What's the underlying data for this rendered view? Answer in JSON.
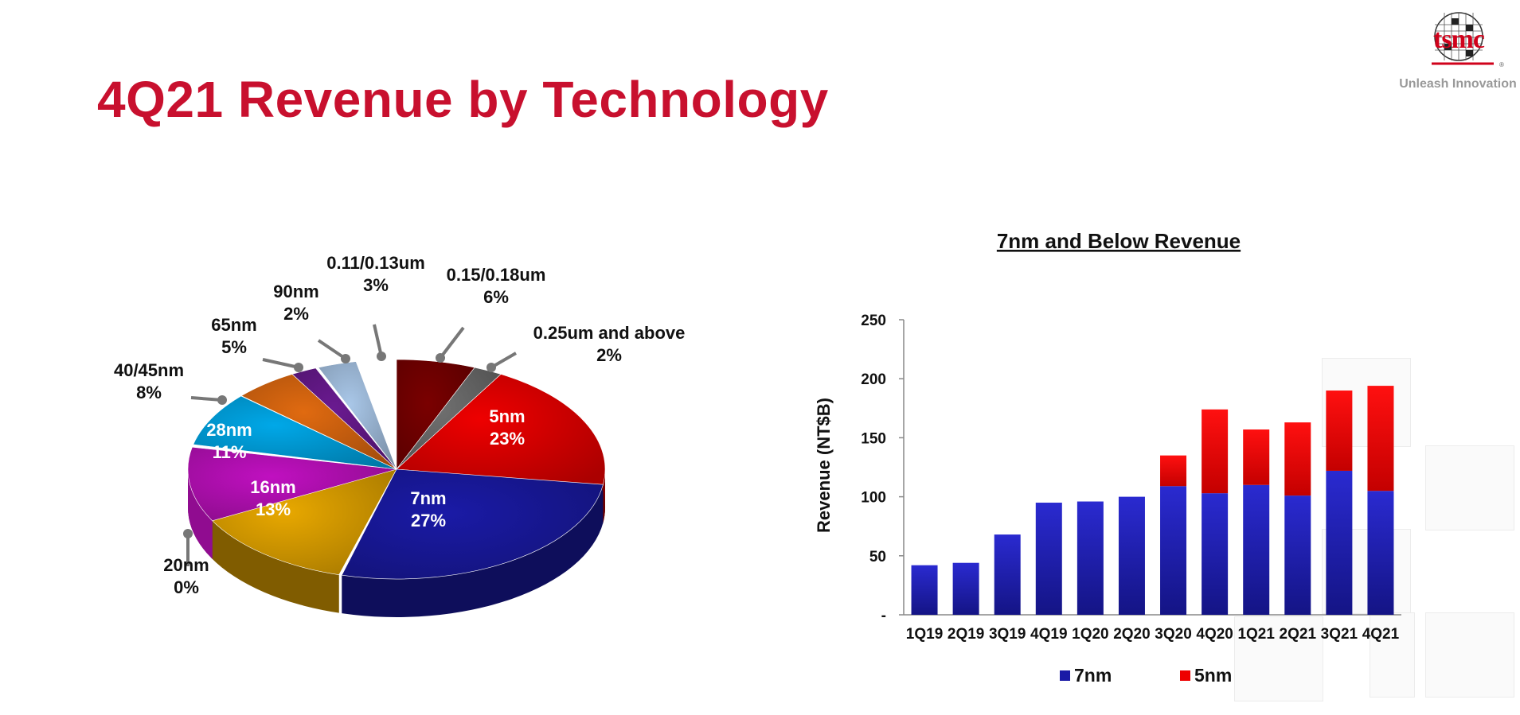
{
  "page": {
    "title": "4Q21 Revenue by Technology"
  },
  "logo": {
    "brand": "tsmc",
    "tagline": "Unleash Innovation",
    "registered_mark": "®"
  },
  "colors": {
    "title_red": "#c8102e",
    "7nm": "#1a1aa6",
    "5nm": "#ee0000",
    "16nm": "#e8a800",
    "28nm": "#c010c0",
    "40/45nm": "#00a8e8",
    "65nm": "#e06a10",
    "90nm": "#6a1a90",
    "0.11/0.13um": "#a9c7e8",
    "0.15/0.18um": "#7a0000",
    "0.25um and above": "#707070",
    "20nm": "#e8a800"
  },
  "chart_data": [
    {
      "type": "pie",
      "title": "",
      "slices": [
        {
          "label": "5nm",
          "value": 23,
          "text": "23%"
        },
        {
          "label": "7nm",
          "value": 27,
          "text": "27%"
        },
        {
          "label": "16nm",
          "value": 13,
          "text": "13%"
        },
        {
          "label": "20nm",
          "value": 0,
          "text": "0%"
        },
        {
          "label": "28nm",
          "value": 11,
          "text": "11%"
        },
        {
          "label": "40/45nm",
          "value": 8,
          "text": "8%"
        },
        {
          "label": "65nm",
          "value": 5,
          "text": "5%"
        },
        {
          "label": "90nm",
          "value": 2,
          "text": "2%"
        },
        {
          "label": "0.11/0.13um",
          "value": 3,
          "text": "3%"
        },
        {
          "label": "0.15/0.18um",
          "value": 6,
          "text": "6%"
        },
        {
          "label": "0.25um and above",
          "value": 2,
          "text": "2%"
        }
      ]
    },
    {
      "type": "bar",
      "stacked": true,
      "title": "7nm and Below Revenue",
      "xlabel": "",
      "ylabel": "Revenue (NT$B)",
      "ylim": [
        0,
        250
      ],
      "yticks": [
        "-",
        "50",
        "100",
        "150",
        "200",
        "250"
      ],
      "categories": [
        "1Q19",
        "2Q19",
        "3Q19",
        "4Q19",
        "1Q20",
        "2Q20",
        "3Q20",
        "4Q20",
        "1Q21",
        "2Q21",
        "3Q21",
        "4Q21"
      ],
      "series": [
        {
          "name": "7nm",
          "values": [
            42,
            44,
            68,
            95,
            96,
            100,
            109,
            103,
            110,
            101,
            122,
            105
          ]
        },
        {
          "name": "5nm",
          "values": [
            0,
            0,
            0,
            0,
            0,
            0,
            26,
            71,
            47,
            62,
            68,
            89
          ]
        }
      ],
      "legend_position": "bottom"
    }
  ]
}
